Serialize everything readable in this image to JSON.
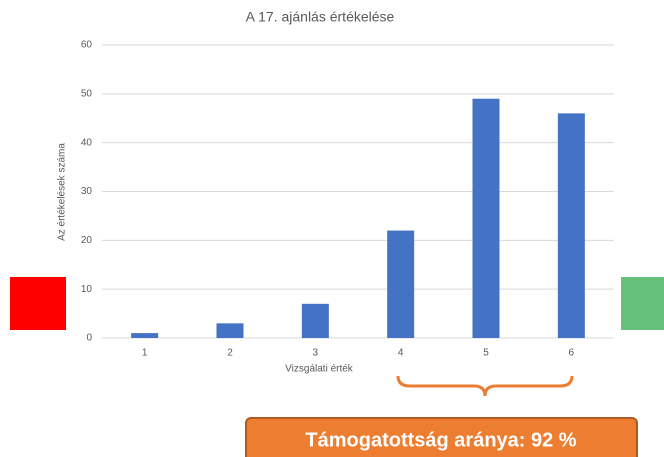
{
  "chart_data": {
    "type": "bar",
    "title": "A 17. ajánlás értékelése",
    "x_label": "Vizsgálati érték",
    "y_label": "Az értékelések száma",
    "categories": [
      "1",
      "2",
      "3",
      "4",
      "5",
      "6"
    ],
    "values": [
      1,
      3,
      7,
      22,
      49,
      46
    ],
    "color": "#4472c4",
    "ylim": [
      0,
      60
    ],
    "yticks": [
      0,
      10,
      20,
      30,
      40,
      50,
      60
    ],
    "grid": true,
    "annotation": "Támogatottság aránya: 92 %"
  }
}
